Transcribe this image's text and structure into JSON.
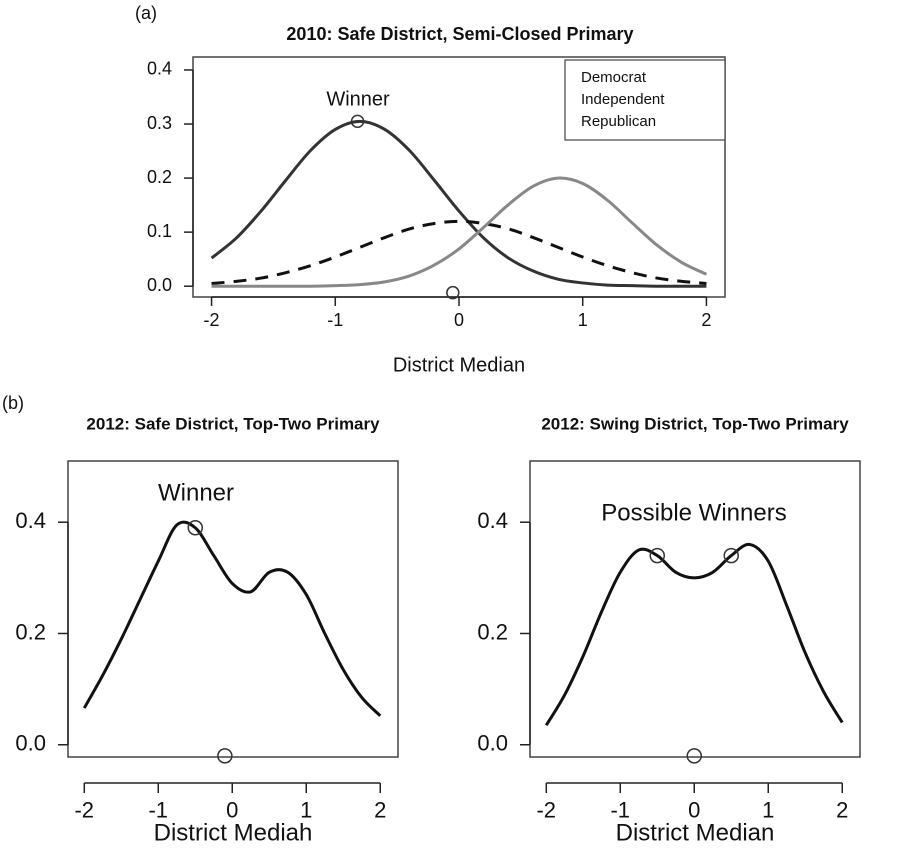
{
  "chart_data": [
    {
      "type": "line",
      "panel_label": "(a)",
      "title": "2010: Safe District, Semi-Closed Primary",
      "xlabel": "District Median",
      "annotation": "Winner",
      "legend": "top-right",
      "x": [
        -2,
        -1.8,
        -1.6,
        -1.4,
        -1.2,
        -1,
        -0.8,
        -0.6,
        -0.4,
        -0.2,
        0,
        0.2,
        0.4,
        0.6,
        0.8,
        1,
        1.2,
        1.4,
        1.6,
        1.8,
        2
      ],
      "series": [
        {
          "name": "Democrat",
          "color": "#333333",
          "line_style": "solid",
          "values": [
            0.052,
            0.089,
            0.139,
            0.196,
            0.251,
            0.29,
            0.305,
            0.29,
            0.251,
            0.196,
            0.139,
            0.089,
            0.052,
            0.028,
            0.013,
            0.006,
            0.002,
            0.001,
            0,
            0,
            0
          ]
        },
        {
          "name": "Independent",
          "color": "#111111",
          "line_style": "dashed",
          "values": [
            0.005,
            0.009,
            0.015,
            0.025,
            0.038,
            0.054,
            0.072,
            0.09,
            0.106,
            0.116,
            0.12,
            0.116,
            0.106,
            0.09,
            0.072,
            0.054,
            0.038,
            0.025,
            0.015,
            0.009,
            0.005
          ]
        },
        {
          "name": "Republican",
          "color": "#888888",
          "line_style": "solid",
          "values": [
            0,
            0,
            0,
            0,
            0,
            0.001,
            0.003,
            0.008,
            0.019,
            0.039,
            0.069,
            0.109,
            0.151,
            0.185,
            0.2,
            0.19,
            0.159,
            0.117,
            0.076,
            0.044,
            0.022
          ]
        }
      ],
      "points": {
        "x": [
          -0.82,
          -0.05
        ],
        "y": [
          0.305,
          -0.012
        ]
      },
      "xlim": [
        -2.15,
        2.15
      ],
      "ylim": [
        -0.02,
        0.424
      ],
      "xticks": [
        -2,
        -1,
        0,
        1,
        2
      ],
      "yticks": [
        {
          "value": 0,
          "label": "0.0"
        },
        0.1,
        0.2,
        0.3,
        0.4
      ]
    },
    {
      "type": "line",
      "panel_label": "(b)",
      "title": "2012: Safe District, Top-Two Primary",
      "xlabel": "District Mediah",
      "annotation": "Winner",
      "x": [
        -2,
        -1.75,
        -1.5,
        -1.25,
        -1,
        -0.75,
        -0.5,
        -0.25,
        0,
        0.25,
        0.5,
        0.75,
        1,
        1.25,
        1.5,
        1.75,
        2
      ],
      "series": [
        {
          "color": "#111111",
          "line_style": "solid",
          "values": [
            0.066,
            0.125,
            0.19,
            0.26,
            0.33,
            0.395,
            0.39,
            0.34,
            0.29,
            0.275,
            0.31,
            0.31,
            0.27,
            0.2,
            0.135,
            0.085,
            0.052
          ]
        }
      ],
      "points": {
        "x": [
          -0.5,
          -0.1
        ],
        "y": [
          0.39,
          -0.02
        ]
      },
      "xlim": [
        -2.22,
        2.24
      ],
      "ylim": [
        -0.022,
        0.51
      ],
      "xticks": [
        -2,
        -1,
        0,
        1,
        2
      ],
      "yticks": [
        {
          "value": 0,
          "label": "0.0"
        },
        0.2,
        0.4
      ]
    },
    {
      "type": "line",
      "title": "2012: Swing District, Top-Two Primary",
      "xlabel": "District Median",
      "annotation": "Possible Winners",
      "x": [
        -2,
        -1.75,
        -1.5,
        -1.25,
        -1,
        -0.75,
        -0.5,
        -0.25,
        0,
        0.25,
        0.5,
        0.75,
        1,
        1.25,
        1.5,
        1.75,
        2
      ],
      "series": [
        {
          "color": "#111111",
          "line_style": "solid",
          "values": [
            0.035,
            0.09,
            0.16,
            0.24,
            0.31,
            0.35,
            0.34,
            0.31,
            0.3,
            0.31,
            0.34,
            0.36,
            0.33,
            0.25,
            0.165,
            0.095,
            0.04
          ]
        }
      ],
      "points": {
        "x": [
          -0.5,
          0.5,
          0
        ],
        "y": [
          0.34,
          0.34,
          -0.02
        ]
      },
      "xlim": [
        -2.22,
        2.24
      ],
      "ylim": [
        -0.022,
        0.51
      ],
      "xticks": [
        -2,
        -1,
        0,
        1,
        2
      ],
      "yticks": [
        {
          "value": 0,
          "label": "0.0"
        },
        0.2,
        0.4
      ]
    }
  ]
}
